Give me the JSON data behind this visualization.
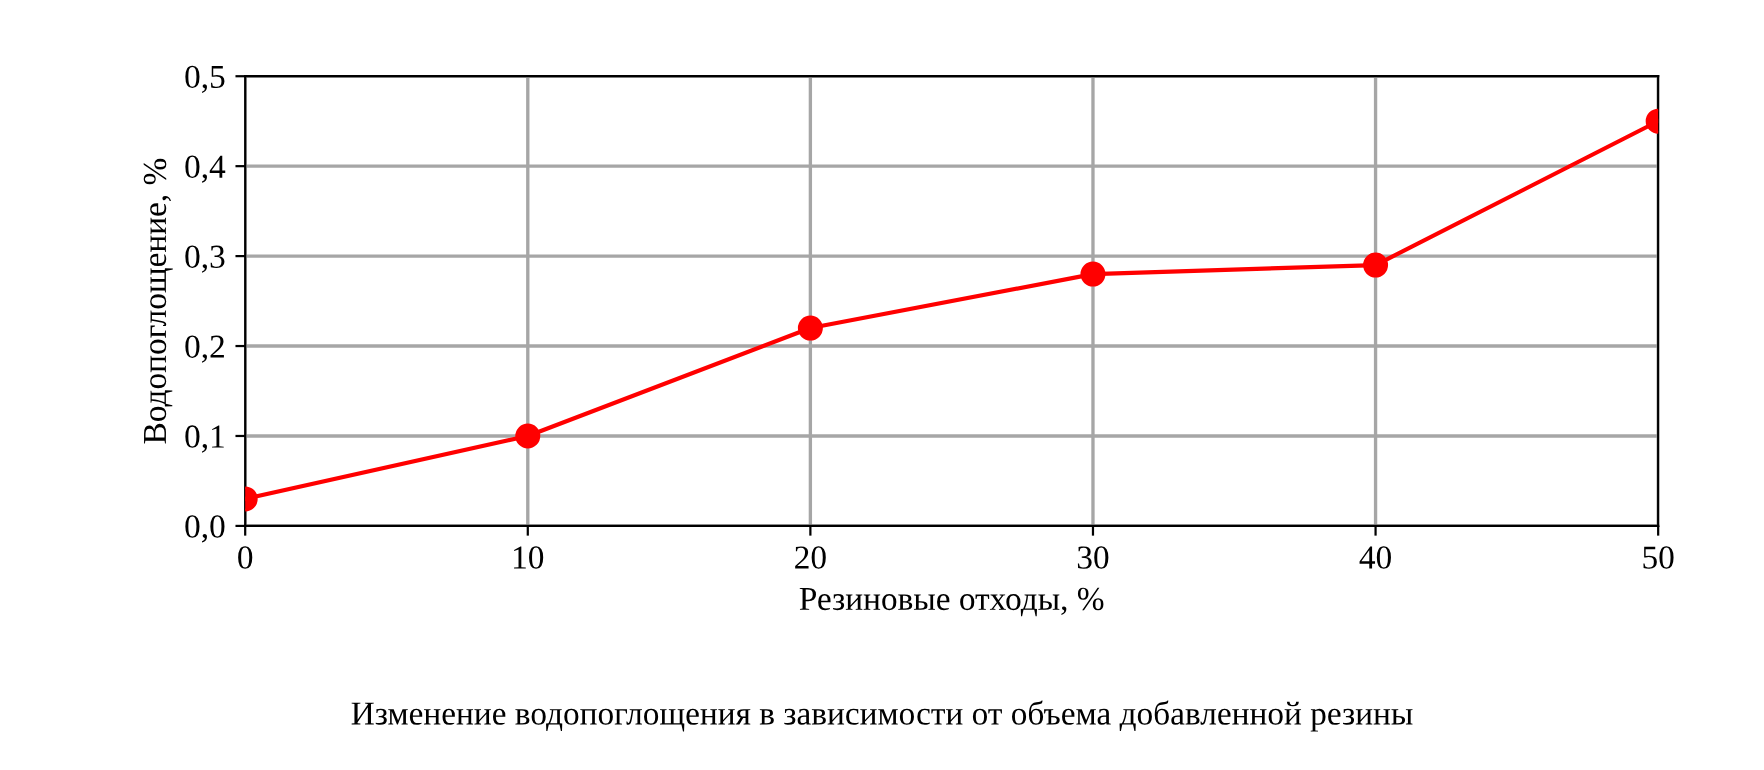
{
  "chart_data": {
    "type": "line",
    "xlabel": "Резиновые отходы, %",
    "ylabel": "Водопоглощение, %",
    "annotations": [
      "Изменение водопоглощения в зависимости от объема добавленной резины"
    ],
    "x": [
      0,
      10,
      20,
      30,
      40,
      50
    ],
    "series": [
      {
        "color": "#ff0000",
        "values": [
          0.03,
          0.1,
          0.22,
          0.28,
          0.29,
          0.45
        ]
      }
    ],
    "xlim": [
      0,
      50
    ],
    "xticks": [
      0,
      10,
      20,
      30,
      40,
      50
    ],
    "ylim": [
      0,
      0.5
    ],
    "yticks": [
      {
        "value": 0,
        "label": "0,0"
      },
      {
        "value": 0.1,
        "label": "0,1"
      },
      {
        "value": 0.2,
        "label": "0,2"
      },
      {
        "value": 0.3,
        "label": "0,3"
      },
      {
        "value": 0.4,
        "label": "0,4"
      },
      {
        "value": 0.5,
        "label": "0,5"
      }
    ],
    "grid": true,
    "marker": "circle",
    "line_style": "solid"
  }
}
